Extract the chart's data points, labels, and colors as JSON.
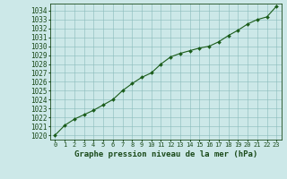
{
  "x": [
    0,
    1,
    2,
    3,
    4,
    5,
    6,
    7,
    8,
    9,
    10,
    11,
    12,
    13,
    14,
    15,
    16,
    17,
    18,
    19,
    20,
    21,
    22,
    23
  ],
  "y": [
    1020.0,
    1021.1,
    1021.8,
    1022.3,
    1022.8,
    1023.4,
    1024.0,
    1025.0,
    1025.8,
    1026.5,
    1027.0,
    1028.0,
    1028.8,
    1029.2,
    1029.5,
    1029.8,
    1030.0,
    1030.5,
    1031.2,
    1031.8,
    1032.5,
    1033.0,
    1033.3,
    1034.5
  ],
  "line_color": "#1a5c1a",
  "marker": "D",
  "marker_size": 2.0,
  "bg_color": "#cce8e8",
  "grid_color": "#88bbbb",
  "xlabel": "Graphe pression niveau de la mer (hPa)",
  "xlabel_fontsize": 6.5,
  "ytick_fontsize": 5.5,
  "xtick_fontsize": 5.0,
  "xlim": [
    -0.5,
    23.5
  ],
  "ylim": [
    1019.5,
    1034.8
  ],
  "yticks": [
    1020,
    1021,
    1022,
    1023,
    1024,
    1025,
    1026,
    1027,
    1028,
    1029,
    1030,
    1031,
    1032,
    1033,
    1034
  ],
  "xticks": [
    0,
    1,
    2,
    3,
    4,
    5,
    6,
    7,
    8,
    9,
    10,
    11,
    12,
    13,
    14,
    15,
    16,
    17,
    18,
    19,
    20,
    21,
    22,
    23
  ],
  "text_color": "#1a4a1a",
  "line_width": 0.8
}
